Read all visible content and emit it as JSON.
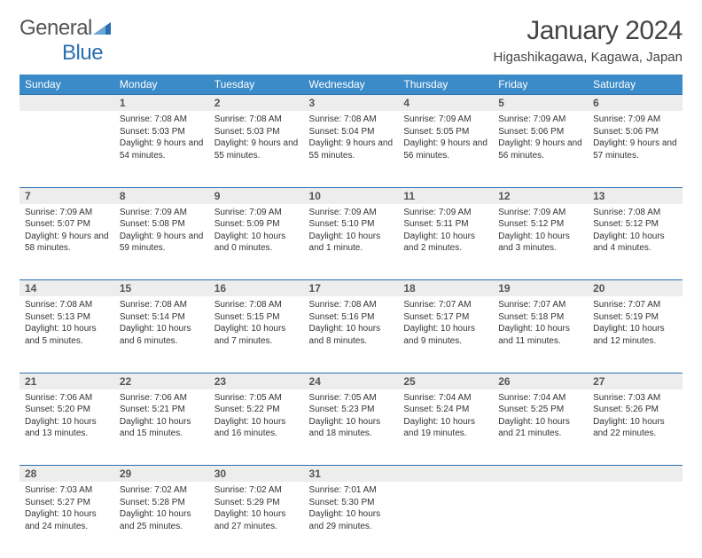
{
  "brand": {
    "part1": "General",
    "part2": "Blue"
  },
  "title": "January 2024",
  "location": "Higashikagawa, Kagawa, Japan",
  "colors": {
    "header_bg": "#3b8bc9",
    "header_text": "#ffffff",
    "dayhead_bg": "#ededed",
    "dayhead_border": "#2a6fb0",
    "body_text": "#333333",
    "title_text": "#444444"
  },
  "weekdays": [
    "Sunday",
    "Monday",
    "Tuesday",
    "Wednesday",
    "Thursday",
    "Friday",
    "Saturday"
  ],
  "start_offset": 1,
  "days": [
    {
      "n": "1",
      "sunrise": "7:08 AM",
      "sunset": "5:03 PM",
      "daylight": "9 hours and 54 minutes."
    },
    {
      "n": "2",
      "sunrise": "7:08 AM",
      "sunset": "5:03 PM",
      "daylight": "9 hours and 55 minutes."
    },
    {
      "n": "3",
      "sunrise": "7:08 AM",
      "sunset": "5:04 PM",
      "daylight": "9 hours and 55 minutes."
    },
    {
      "n": "4",
      "sunrise": "7:09 AM",
      "sunset": "5:05 PM",
      "daylight": "9 hours and 56 minutes."
    },
    {
      "n": "5",
      "sunrise": "7:09 AM",
      "sunset": "5:06 PM",
      "daylight": "9 hours and 56 minutes."
    },
    {
      "n": "6",
      "sunrise": "7:09 AM",
      "sunset": "5:06 PM",
      "daylight": "9 hours and 57 minutes."
    },
    {
      "n": "7",
      "sunrise": "7:09 AM",
      "sunset": "5:07 PM",
      "daylight": "9 hours and 58 minutes."
    },
    {
      "n": "8",
      "sunrise": "7:09 AM",
      "sunset": "5:08 PM",
      "daylight": "9 hours and 59 minutes."
    },
    {
      "n": "9",
      "sunrise": "7:09 AM",
      "sunset": "5:09 PM",
      "daylight": "10 hours and 0 minutes."
    },
    {
      "n": "10",
      "sunrise": "7:09 AM",
      "sunset": "5:10 PM",
      "daylight": "10 hours and 1 minute."
    },
    {
      "n": "11",
      "sunrise": "7:09 AM",
      "sunset": "5:11 PM",
      "daylight": "10 hours and 2 minutes."
    },
    {
      "n": "12",
      "sunrise": "7:09 AM",
      "sunset": "5:12 PM",
      "daylight": "10 hours and 3 minutes."
    },
    {
      "n": "13",
      "sunrise": "7:08 AM",
      "sunset": "5:12 PM",
      "daylight": "10 hours and 4 minutes."
    },
    {
      "n": "14",
      "sunrise": "7:08 AM",
      "sunset": "5:13 PM",
      "daylight": "10 hours and 5 minutes."
    },
    {
      "n": "15",
      "sunrise": "7:08 AM",
      "sunset": "5:14 PM",
      "daylight": "10 hours and 6 minutes."
    },
    {
      "n": "16",
      "sunrise": "7:08 AM",
      "sunset": "5:15 PM",
      "daylight": "10 hours and 7 minutes."
    },
    {
      "n": "17",
      "sunrise": "7:08 AM",
      "sunset": "5:16 PM",
      "daylight": "10 hours and 8 minutes."
    },
    {
      "n": "18",
      "sunrise": "7:07 AM",
      "sunset": "5:17 PM",
      "daylight": "10 hours and 9 minutes."
    },
    {
      "n": "19",
      "sunrise": "7:07 AM",
      "sunset": "5:18 PM",
      "daylight": "10 hours and 11 minutes."
    },
    {
      "n": "20",
      "sunrise": "7:07 AM",
      "sunset": "5:19 PM",
      "daylight": "10 hours and 12 minutes."
    },
    {
      "n": "21",
      "sunrise": "7:06 AM",
      "sunset": "5:20 PM",
      "daylight": "10 hours and 13 minutes."
    },
    {
      "n": "22",
      "sunrise": "7:06 AM",
      "sunset": "5:21 PM",
      "daylight": "10 hours and 15 minutes."
    },
    {
      "n": "23",
      "sunrise": "7:05 AM",
      "sunset": "5:22 PM",
      "daylight": "10 hours and 16 minutes."
    },
    {
      "n": "24",
      "sunrise": "7:05 AM",
      "sunset": "5:23 PM",
      "daylight": "10 hours and 18 minutes."
    },
    {
      "n": "25",
      "sunrise": "7:04 AM",
      "sunset": "5:24 PM",
      "daylight": "10 hours and 19 minutes."
    },
    {
      "n": "26",
      "sunrise": "7:04 AM",
      "sunset": "5:25 PM",
      "daylight": "10 hours and 21 minutes."
    },
    {
      "n": "27",
      "sunrise": "7:03 AM",
      "sunset": "5:26 PM",
      "daylight": "10 hours and 22 minutes."
    },
    {
      "n": "28",
      "sunrise": "7:03 AM",
      "sunset": "5:27 PM",
      "daylight": "10 hours and 24 minutes."
    },
    {
      "n": "29",
      "sunrise": "7:02 AM",
      "sunset": "5:28 PM",
      "daylight": "10 hours and 25 minutes."
    },
    {
      "n": "30",
      "sunrise": "7:02 AM",
      "sunset": "5:29 PM",
      "daylight": "10 hours and 27 minutes."
    },
    {
      "n": "31",
      "sunrise": "7:01 AM",
      "sunset": "5:30 PM",
      "daylight": "10 hours and 29 minutes."
    }
  ],
  "labels": {
    "sunrise": "Sunrise: ",
    "sunset": "Sunset: ",
    "daylight": "Daylight: "
  }
}
